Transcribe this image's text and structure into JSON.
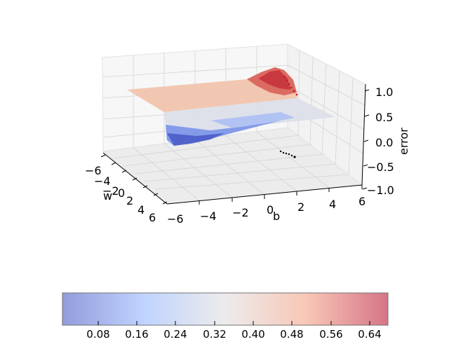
{
  "chart_data": {
    "type": "surface3d",
    "xlabel": "w",
    "ylabel": "b",
    "zlabel": "error",
    "xlim": [
      -6,
      6
    ],
    "ylim": [
      -6,
      6
    ],
    "zlim": [
      -1,
      1
    ],
    "x_ticks": [
      "−6",
      "−4",
      "−2",
      "0",
      "2",
      "4",
      "6"
    ],
    "y_ticks": [
      "−6",
      "−4",
      "−2",
      "0",
      "2",
      "4",
      "6"
    ],
    "z_ticks": [
      "1.0",
      "0.5",
      "0.0",
      "−0.5",
      "−1.0"
    ],
    "colormap": "coolwarm",
    "colorbar": {
      "range": [
        0,
        0.68
      ],
      "ticks": [
        "0.08",
        "0.16",
        "0.24",
        "0.32",
        "0.40",
        "0.48",
        "0.56",
        "0.64"
      ],
      "low_color": "#3b4cc0",
      "mid_color": "#dddddd",
      "high_color": "#b40426"
    },
    "grid": true
  }
}
